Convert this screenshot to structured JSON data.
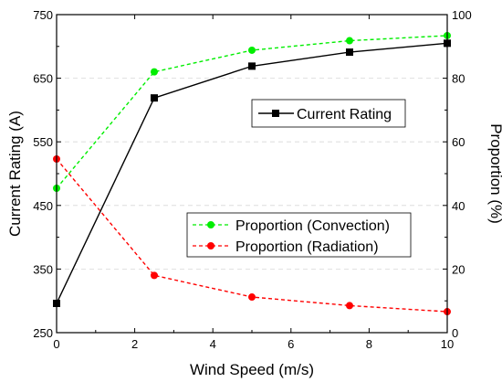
{
  "chart_data": {
    "type": "line",
    "xlabel": "Wind Speed (m/s)",
    "ylabel_left": "Current Rating (A)",
    "ylabel_right": "Proportion (%)",
    "xlim": [
      0,
      10
    ],
    "ylim_left": [
      250,
      750
    ],
    "ylim_right": [
      0,
      100
    ],
    "x_ticks": [
      "0",
      "2",
      "4",
      "6",
      "8",
      "10"
    ],
    "y_left_ticks": [
      "250",
      "350",
      "450",
      "550",
      "650",
      "750"
    ],
    "y_right_ticks": [
      "0",
      "20",
      "40",
      "60",
      "80",
      "100"
    ],
    "grid": true,
    "x": [
      0,
      2.5,
      5,
      7.5,
      10
    ],
    "series": [
      {
        "name": "Current Rating",
        "axis": "left",
        "color": "#000000",
        "line": "solid",
        "marker": "square",
        "values": [
          296,
          619,
          669,
          691,
          705
        ]
      },
      {
        "name": "Proportion (Convection)",
        "axis": "right",
        "color": "#00ee00",
        "line": "dashed",
        "marker": "circle",
        "values": [
          45.4,
          82.0,
          88.8,
          91.8,
          93.4
        ]
      },
      {
        "name": "Proportion (Radiation)",
        "axis": "right",
        "color": "#ff0000",
        "line": "dashed",
        "marker": "circle",
        "values": [
          54.6,
          18.0,
          11.2,
          8.5,
          6.6
        ]
      }
    ],
    "legends": [
      {
        "entries": [
          "Current Rating"
        ]
      },
      {
        "entries": [
          "Proportion (Convection)",
          "Proportion (Radiation)"
        ]
      }
    ]
  }
}
